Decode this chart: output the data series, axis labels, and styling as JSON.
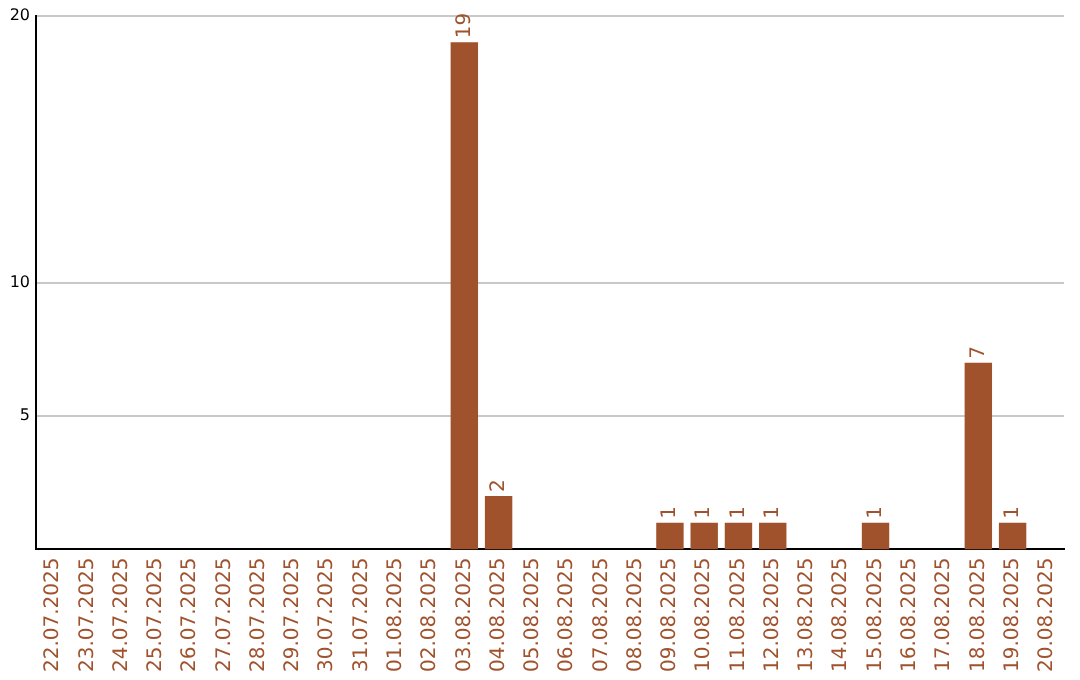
{
  "chart_data": {
    "type": "bar",
    "categories": [
      "22.07.2025",
      "23.07.2025",
      "24.07.2025",
      "25.07.2025",
      "26.07.2025",
      "27.07.2025",
      "28.07.2025",
      "29.07.2025",
      "30.07.2025",
      "31.07.2025",
      "01.08.2025",
      "02.08.2025",
      "03.08.2025",
      "04.08.2025",
      "05.08.2025",
      "06.08.2025",
      "07.08.2025",
      "08.08.2025",
      "09.08.2025",
      "10.08.2025",
      "11.08.2025",
      "12.08.2025",
      "13.08.2025",
      "14.08.2025",
      "15.08.2025",
      "16.08.2025",
      "17.08.2025",
      "18.08.2025",
      "19.08.2025",
      "20.08.2025"
    ],
    "values": [
      0,
      0,
      0,
      0,
      0,
      0,
      0,
      0,
      0,
      0,
      0,
      0,
      19,
      2,
      0,
      0,
      0,
      0,
      1,
      1,
      1,
      1,
      0,
      0,
      1,
      0,
      0,
      7,
      1,
      0
    ],
    "value_labels": [
      null,
      null,
      null,
      null,
      null,
      null,
      null,
      null,
      null,
      null,
      null,
      null,
      "19",
      "2",
      null,
      null,
      null,
      null,
      "1",
      "1",
      "1",
      "1",
      null,
      null,
      "1",
      null,
      null,
      "7",
      "1",
      null
    ],
    "color": "#a0522d",
    "ylim": [
      0,
      20
    ],
    "yticks": [
      5,
      10,
      20
    ],
    "grid": "y",
    "legend": false
  }
}
